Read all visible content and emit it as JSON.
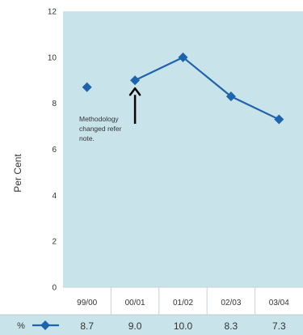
{
  "chart_data": {
    "type": "line",
    "categories": [
      "99/00",
      "00/01",
      "01/02",
      "02/03",
      "03/04"
    ],
    "series": [
      {
        "name": "%",
        "values": [
          8.7,
          9.0,
          10.0,
          8.3,
          7.3
        ],
        "connected_from_index": 1
      }
    ],
    "value_labels": [
      "8.7",
      "9.0",
      "10.0",
      "8.3",
      "7.3"
    ],
    "ylabel": "Per Cent",
    "ylim": [
      0,
      12
    ],
    "yticks": [
      "0",
      "2",
      "4",
      "6",
      "8",
      "10",
      "12"
    ],
    "grid": false,
    "legend": "bottom-left",
    "annotation": {
      "lines": [
        "Methodology",
        "changed refer",
        "note."
      ],
      "target_index": 1
    },
    "colors": {
      "plot_bg": "#c9e3ea",
      "line": "#1e63ad",
      "text": "#333333",
      "arrow": "#000000"
    }
  }
}
